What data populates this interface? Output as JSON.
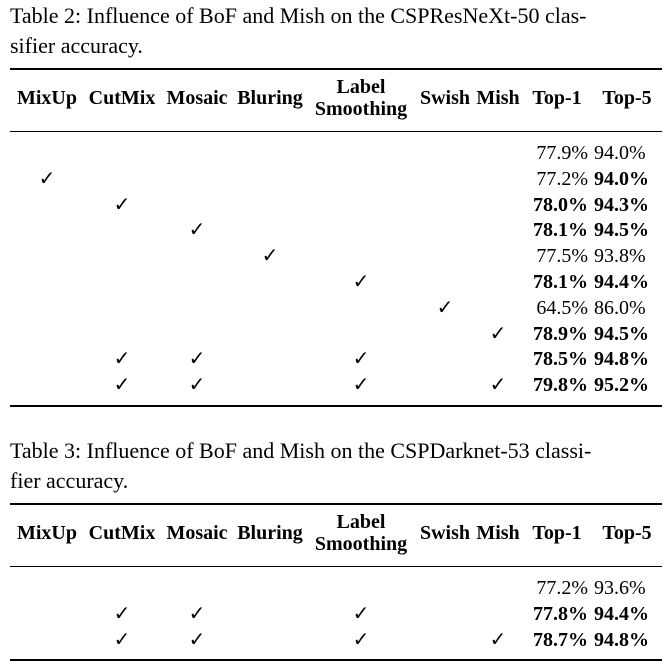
{
  "table2": {
    "caption": "Table 2: Influence of BoF and Mish on the CSPResNeXt-50 classifier accuracy.",
    "caption_line1": "Table 2: Influence of BoF and Mish on the CSPResNeXt-50 clas-",
    "caption_line2": "sifier accuracy.",
    "headers": {
      "mixup": "MixUp",
      "cutmix": "CutMix",
      "mosaic": "Mosaic",
      "bluring": "Bluring",
      "label_line1": "Label",
      "label_line2": "Smoothing",
      "swish": "Swish",
      "mish": "Mish",
      "top1": "Top-1",
      "top5": "Top-5"
    },
    "rows": [
      {
        "mixup": "",
        "cutmix": "",
        "mosaic": "",
        "bluring": "",
        "label": "",
        "swish": "",
        "mish": "",
        "top1": "77.9%",
        "top5": "94.0%",
        "top1_bold": false,
        "top5_bold": false
      },
      {
        "mixup": "✓",
        "cutmix": "",
        "mosaic": "",
        "bluring": "",
        "label": "",
        "swish": "",
        "mish": "",
        "top1": "77.2%",
        "top5": "94.0%",
        "top1_bold": false,
        "top5_bold": true
      },
      {
        "mixup": "",
        "cutmix": "✓",
        "mosaic": "",
        "bluring": "",
        "label": "",
        "swish": "",
        "mish": "",
        "top1": "78.0%",
        "top5": "94.3%",
        "top1_bold": true,
        "top5_bold": true
      },
      {
        "mixup": "",
        "cutmix": "",
        "mosaic": "✓",
        "bluring": "",
        "label": "",
        "swish": "",
        "mish": "",
        "top1": "78.1%",
        "top5": "94.5%",
        "top1_bold": true,
        "top5_bold": true
      },
      {
        "mixup": "",
        "cutmix": "",
        "mosaic": "",
        "bluring": "✓",
        "label": "",
        "swish": "",
        "mish": "",
        "top1": "77.5%",
        "top5": "93.8%",
        "top1_bold": false,
        "top5_bold": false
      },
      {
        "mixup": "",
        "cutmix": "",
        "mosaic": "",
        "bluring": "",
        "label": "✓",
        "swish": "",
        "mish": "",
        "top1": "78.1%",
        "top5": "94.4%",
        "top1_bold": true,
        "top5_bold": true
      },
      {
        "mixup": "",
        "cutmix": "",
        "mosaic": "",
        "bluring": "",
        "label": "",
        "swish": "✓",
        "mish": "",
        "top1": "64.5%",
        "top5": "86.0%",
        "top1_bold": false,
        "top5_bold": false
      },
      {
        "mixup": "",
        "cutmix": "",
        "mosaic": "",
        "bluring": "",
        "label": "",
        "swish": "",
        "mish": "✓",
        "top1": "78.9%",
        "top5": "94.5%",
        "top1_bold": true,
        "top5_bold": true
      },
      {
        "mixup": "",
        "cutmix": "✓",
        "mosaic": "✓",
        "bluring": "",
        "label": "✓",
        "swish": "",
        "mish": "",
        "top1": "78.5%",
        "top5": "94.8%",
        "top1_bold": true,
        "top5_bold": true
      },
      {
        "mixup": "",
        "cutmix": "✓",
        "mosaic": "✓",
        "bluring": "",
        "label": "✓",
        "swish": "",
        "mish": "✓",
        "top1": "79.8%",
        "top5": "95.2%",
        "top1_bold": true,
        "top5_bold": true
      }
    ]
  },
  "table3": {
    "caption": "Table 3: Influence of BoF and Mish on the CSPDarknet-53 classifier accuracy.",
    "caption_line1": "Table 3: Influence of BoF and Mish on the CSPDarknet-53 classi-",
    "caption_line2": "fier accuracy.",
    "headers": {
      "mixup": "MixUp",
      "cutmix": "CutMix",
      "mosaic": "Mosaic",
      "bluring": "Bluring",
      "label_line1": "Label",
      "label_line2": "Smoothing",
      "swish": "Swish",
      "mish": "Mish",
      "top1": "Top-1",
      "top5": "Top-5"
    },
    "rows": [
      {
        "mixup": "",
        "cutmix": "",
        "mosaic": "",
        "bluring": "",
        "label": "",
        "swish": "",
        "mish": "",
        "top1": "77.2%",
        "top5": "93.6%",
        "top1_bold": false,
        "top5_bold": false
      },
      {
        "mixup": "",
        "cutmix": "✓",
        "mosaic": "✓",
        "bluring": "",
        "label": "✓",
        "swish": "",
        "mish": "",
        "top1": "77.8%",
        "top5": "94.4%",
        "top1_bold": true,
        "top5_bold": true
      },
      {
        "mixup": "",
        "cutmix": "✓",
        "mosaic": "✓",
        "bluring": "",
        "label": "✓",
        "swish": "",
        "mish": "✓",
        "top1": "78.7%",
        "top5": "94.8%",
        "top1_bold": true,
        "top5_bold": true
      }
    ]
  }
}
